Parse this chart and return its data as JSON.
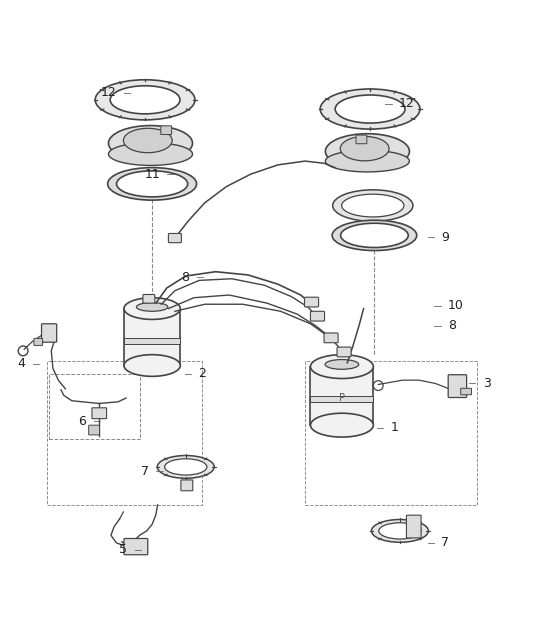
{
  "bg_color": "#ffffff",
  "fig_width": 5.45,
  "fig_height": 6.28,
  "dpi": 100,
  "line_color": "#444444",
  "label_color": "#222222",
  "label_fontsize": 9
}
